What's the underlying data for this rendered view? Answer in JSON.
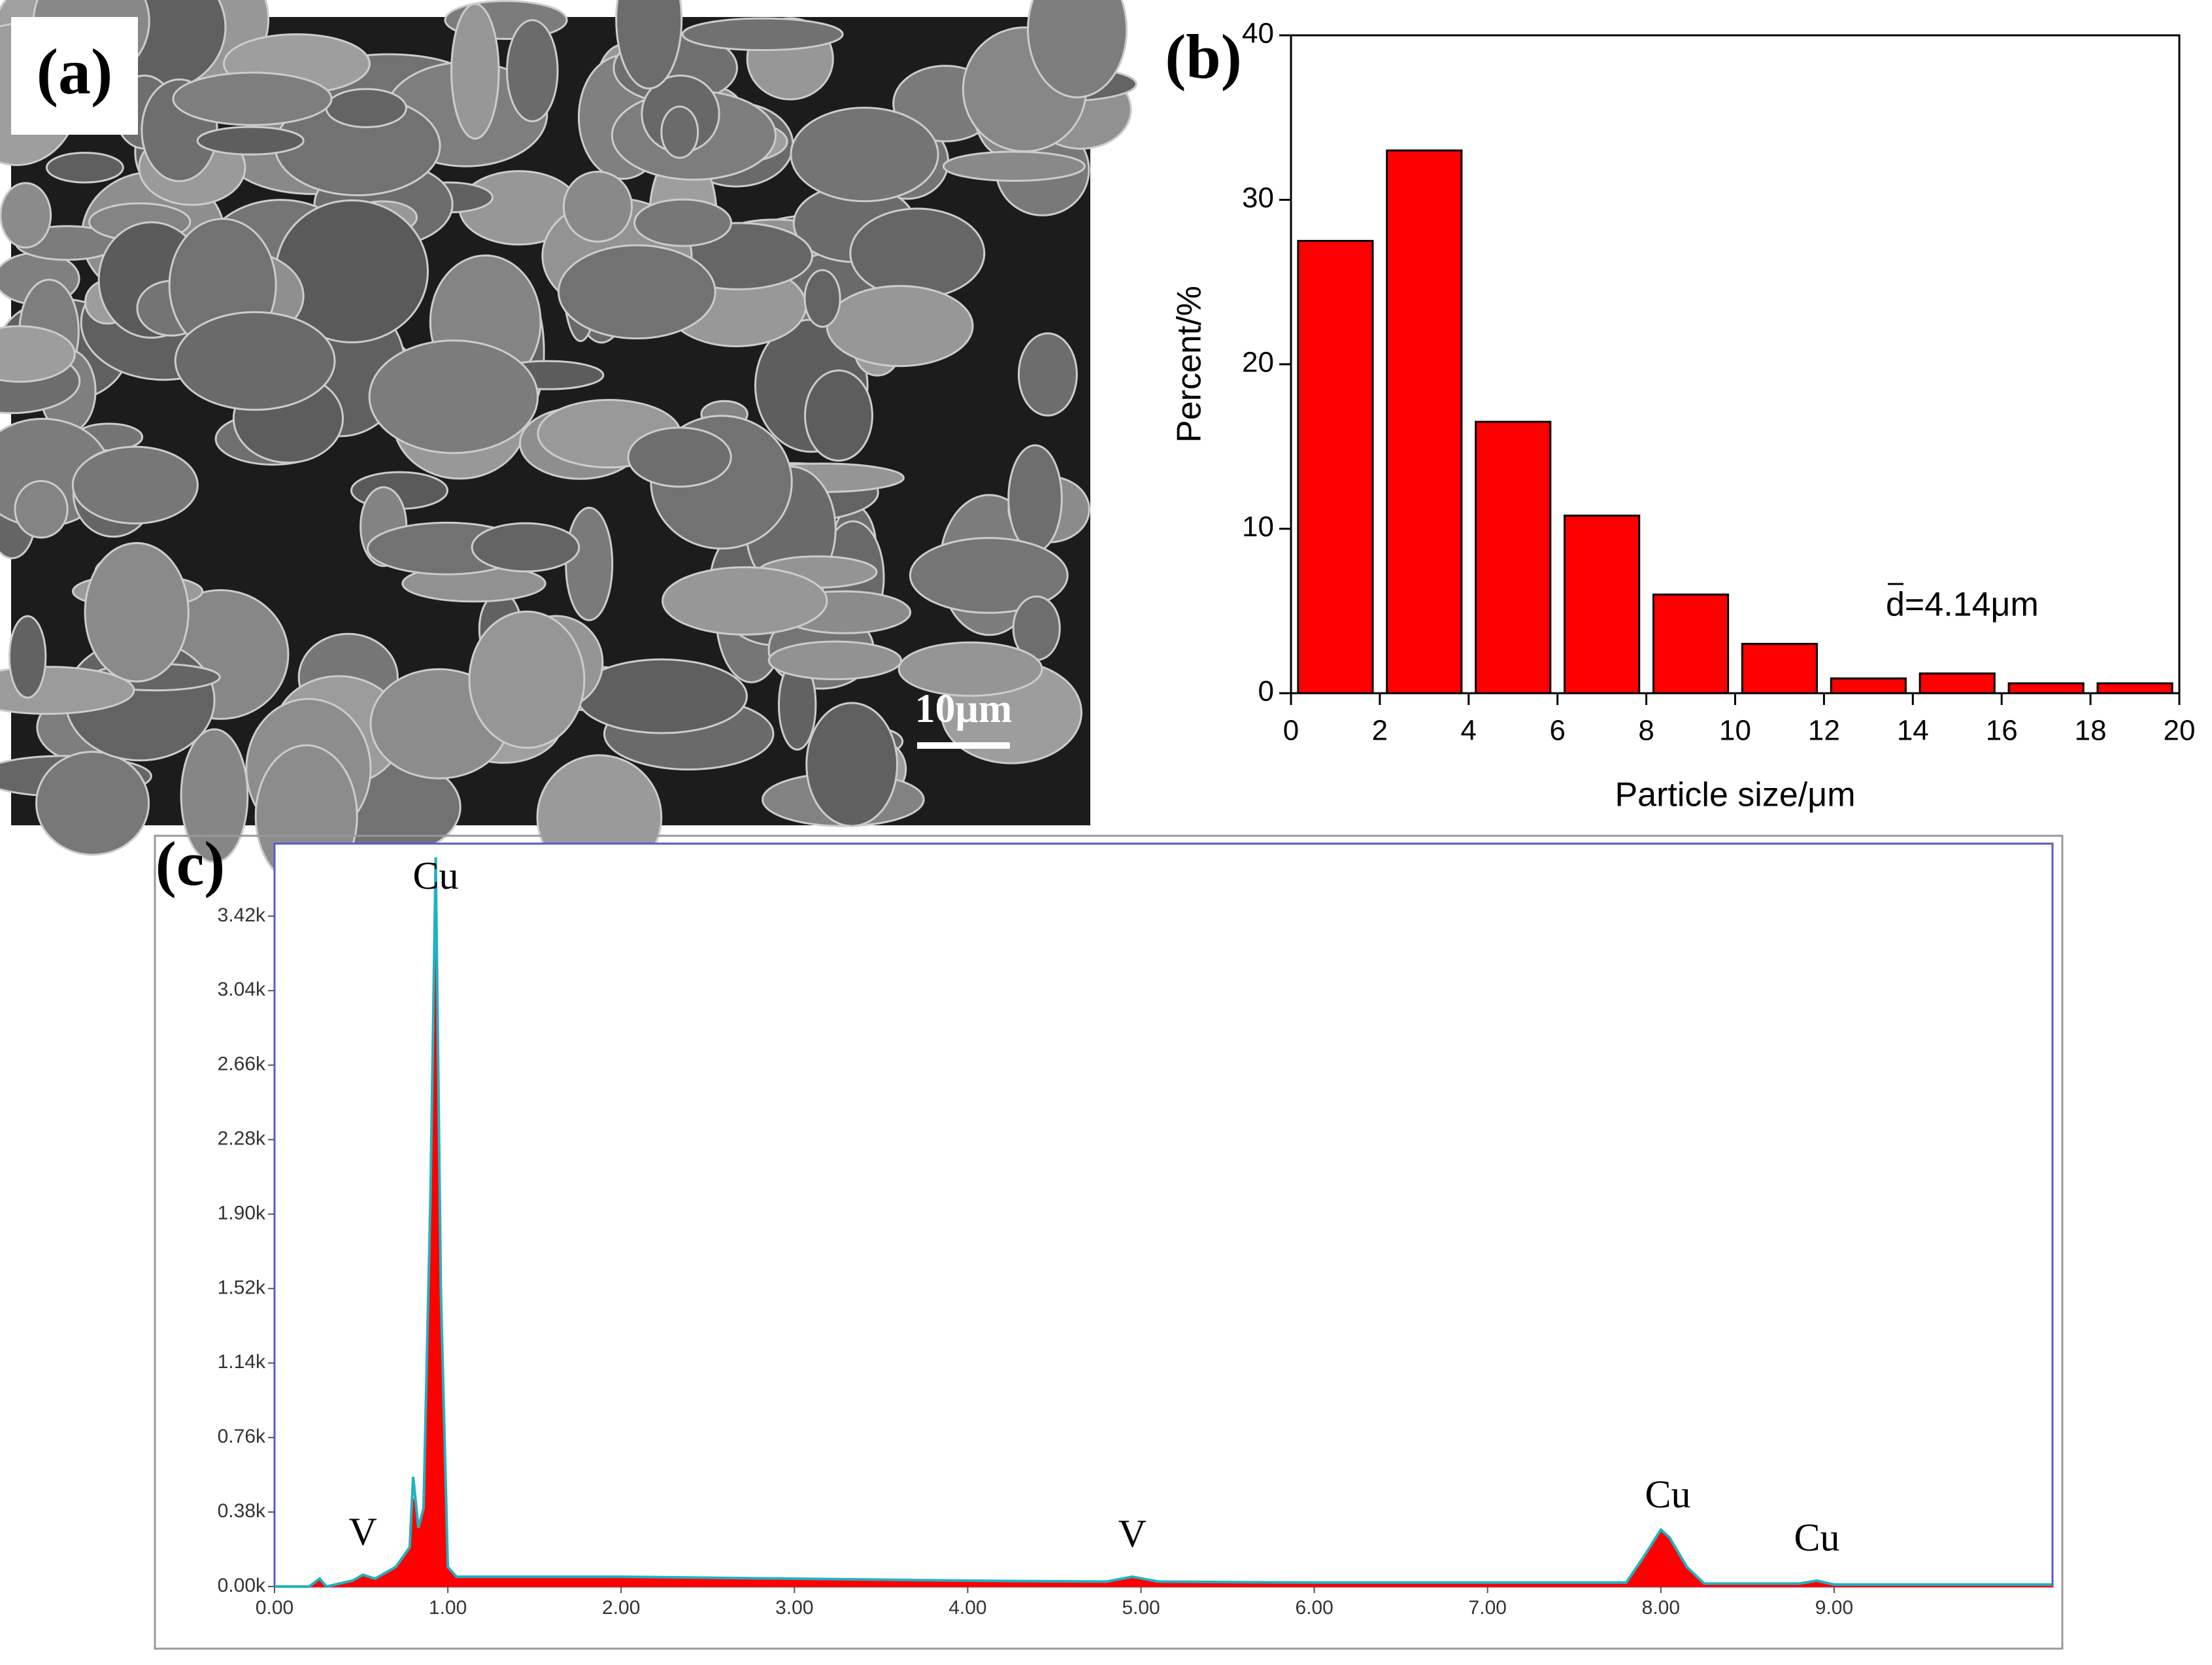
{
  "panel_a": {
    "label": "(a)",
    "scale_bar": "10μm"
  },
  "chart_data": [
    {
      "type": "histogram",
      "panel_label": "(b)",
      "x_label": "Particle size/μm",
      "y_label": "Percent/%",
      "annotation": "d=4.14μm",
      "bins": [
        0,
        2,
        4,
        6,
        8,
        10,
        12,
        14,
        16,
        18,
        20
      ],
      "values": [
        27.5,
        33,
        16.5,
        10.8,
        6,
        3,
        0.9,
        1.2,
        0.6,
        0.6
      ],
      "color": "#ff0000",
      "xlim": [
        0,
        20
      ],
      "xticks": [
        0,
        2,
        4,
        6,
        8,
        10,
        12,
        14,
        16,
        18,
        20
      ],
      "ylim": [
        0,
        40
      ],
      "yticks": [
        0,
        10,
        20,
        30,
        40
      ]
    },
    {
      "type": "spectrum",
      "panel_label": "(c)",
      "x": [
        0,
        0.2,
        0.26,
        0.3,
        0.45,
        0.51,
        0.58,
        0.7,
        0.78,
        0.8,
        0.83,
        0.86,
        0.9,
        0.93,
        0.96,
        1.0,
        1.05,
        1.5,
        2.0,
        3.0,
        4.0,
        4.8,
        4.95,
        5.1,
        6.0,
        7.0,
        7.8,
        7.9,
        8.0,
        8.05,
        8.15,
        8.25,
        8.8,
        8.9,
        9.0,
        10.26
      ],
      "series": [
        {
          "color": "#ff0000",
          "fill": true,
          "values": [
            0,
            0,
            40,
            0,
            30,
            60,
            40,
            100,
            200,
            450,
            300,
            400,
            2000,
            3500,
            1500,
            100,
            50,
            50,
            50,
            40,
            30,
            25,
            50,
            25,
            20,
            20,
            20,
            150,
            290,
            250,
            100,
            15,
            15,
            30,
            10,
            10
          ]
        },
        {
          "color": "#20b2c0",
          "fill": false,
          "values": [
            0,
            0,
            40,
            0,
            30,
            60,
            40,
            100,
            200,
            560,
            300,
            400,
            2000,
            3720,
            1500,
            100,
            50,
            50,
            50,
            40,
            30,
            25,
            50,
            25,
            20,
            20,
            20,
            150,
            290,
            250,
            100,
            15,
            15,
            30,
            10,
            10
          ]
        }
      ],
      "peak_labels": [
        {
          "text": "V",
          "x": 0.51
        },
        {
          "text": "Cu",
          "x": 0.93
        },
        {
          "text": "V",
          "x": 4.95
        },
        {
          "text": "Cu",
          "x": 8.04
        },
        {
          "text": "Cu",
          "x": 8.9
        }
      ],
      "xlim": [
        0,
        10.26
      ],
      "xticks": [
        {
          "value": 0,
          "label": "0.00"
        },
        {
          "value": 1,
          "label": "1.00"
        },
        {
          "value": 2,
          "label": "2.00"
        },
        {
          "value": 3,
          "label": "3.00"
        },
        {
          "value": 4,
          "label": "4.00"
        },
        {
          "value": 5,
          "label": "5.00"
        },
        {
          "value": 6,
          "label": "6.00"
        },
        {
          "value": 7,
          "label": "7.00"
        },
        {
          "value": 8,
          "label": "8.00"
        },
        {
          "value": 9,
          "label": "9.00"
        }
      ],
      "ylim": [
        0,
        3790
      ],
      "yticks": [
        {
          "value": 0,
          "label": "0.00k"
        },
        {
          "value": 380,
          "label": "0.38k"
        },
        {
          "value": 760,
          "label": "0.76k"
        },
        {
          "value": 1140,
          "label": "1.14k"
        },
        {
          "value": 1520,
          "label": "1.52k"
        },
        {
          "value": 1900,
          "label": "1.90k"
        },
        {
          "value": 2280,
          "label": "2.28k"
        },
        {
          "value": 2660,
          "label": "2.66k"
        },
        {
          "value": 3040,
          "label": "3.04k"
        },
        {
          "value": 3420,
          "label": "3.42k"
        }
      ]
    }
  ]
}
